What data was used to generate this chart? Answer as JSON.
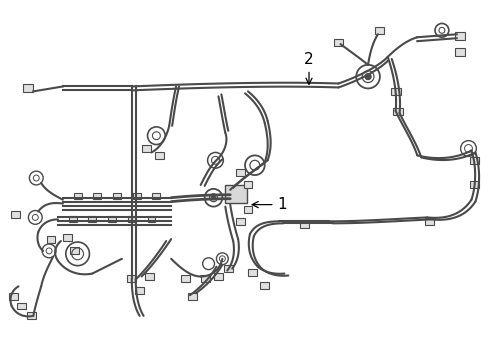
{
  "background_color": "#ffffff",
  "line_color": "#4a4a4a",
  "line_color2": "#666666",
  "lw_main": 1.5,
  "lw_thin": 0.9,
  "label_1_text": "1",
  "label_2_text": "2",
  "figsize": [
    4.9,
    3.6
  ],
  "dpi": 100
}
